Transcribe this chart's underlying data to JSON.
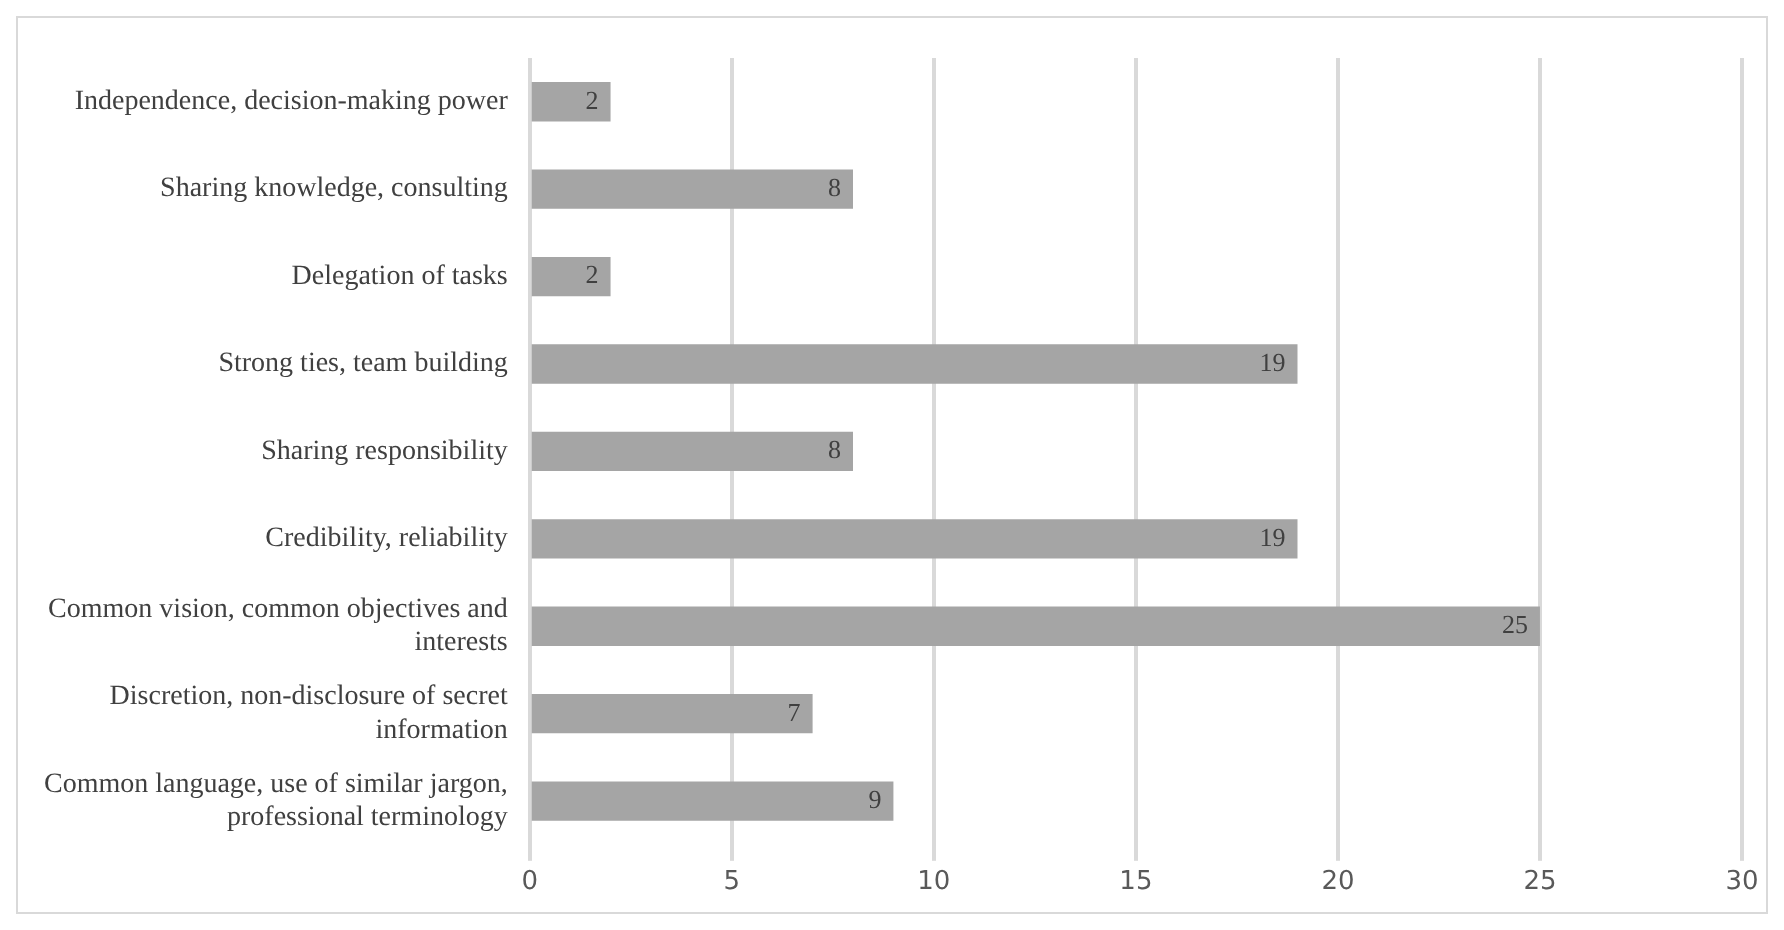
{
  "chart_data": {
    "type": "bar",
    "orientation": "horizontal",
    "categories": [
      "Independence, decision-making power",
      "Sharing knowledge, consulting",
      "Delegation of tasks",
      "Strong ties, team building",
      "Sharing responsibility",
      "Credibility, reliability",
      "Common vision, common objectives and interests",
      "Discretion, non-disclosure of secret information",
      "Common language, use of similar jargon, professional terminology"
    ],
    "values": [
      2,
      8,
      2,
      19,
      8,
      19,
      25,
      7,
      9
    ],
    "color": "#a5a5a5",
    "xlim": [
      0,
      30
    ],
    "xticks": [
      0,
      5,
      10,
      15,
      20,
      25,
      30
    ],
    "grid": "x",
    "legend": false,
    "data_labels": true
  }
}
